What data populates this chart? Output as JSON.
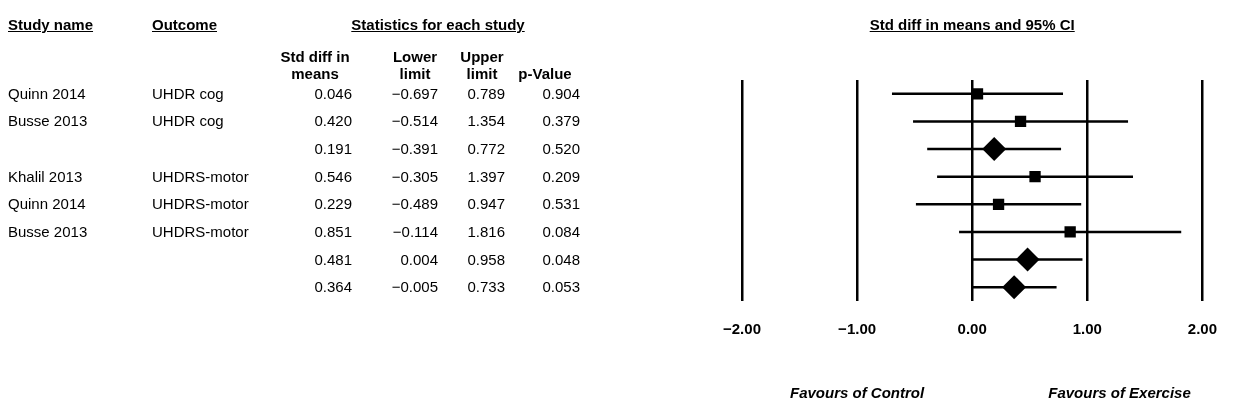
{
  "chart_data": [
    {
      "type": "other",
      "annotations": [
        "Study name",
        "Outcome",
        "Statistics for each study",
        "Std diff in means",
        "Lower limit",
        "Upper limit",
        "p-Value",
        "Quinn 2014",
        "UHDR cog",
        "0.046",
        "−0.697",
        "0.789",
        "0.904",
        "Busse 2013",
        "UHDR cog",
        "0.420",
        "−0.514",
        "1.354",
        "0.379",
        "0.191",
        "−0.391",
        "0.772",
        "0.520",
        "Khalil 2013",
        "UHDRS-motor",
        "0.546",
        "−0.305",
        "1.397",
        "0.209",
        "Quinn 2014",
        "UHDRS-motor",
        "0.229",
        "−0.489",
        "0.947",
        "0.531",
        "Busse 2013",
        "UHDRS-motor",
        "0.851",
        "−0.114",
        "1.816",
        "0.084",
        "0.481",
        "0.004",
        "0.958",
        "0.048",
        "0.364",
        "−0.005",
        "0.733",
        "0.053"
      ]
    },
    {
      "type": "scatter",
      "orientation": "horizontal",
      "title": "Std diff in means and 95% CI",
      "categories": [
        null,
        null,
        null,
        null,
        null,
        null,
        null,
        null
      ],
      "series": [
        {
          "color": "#000000",
          "marker": "square",
          "values": [
            0.046,
            0.42,
            null,
            0.546,
            0.229,
            0.851,
            null,
            null
          ],
          "errors": [
            [
              -0.697,
              0.789
            ],
            [
              -0.514,
              1.354
            ],
            null,
            [
              -0.305,
              1.397
            ],
            [
              -0.489,
              0.947
            ],
            [
              -0.114,
              1.816
            ],
            null,
            null
          ]
        },
        {
          "color": "#000000",
          "marker": "diamond",
          "values": [
            null,
            null,
            0.191,
            null,
            null,
            null,
            0.481,
            0.364
          ],
          "errors": [
            null,
            null,
            [
              -0.391,
              0.772
            ],
            null,
            null,
            null,
            [
              0.004,
              0.958
            ],
            [
              -0.005,
              0.733
            ]
          ]
        }
      ],
      "xlim": [
        -2,
        2
      ],
      "xticks": [
        {
          "value": -2,
          "label": "−2.00"
        },
        {
          "value": -1,
          "label": "−1.00"
        },
        {
          "value": 0,
          "label": "0.00"
        },
        {
          "value": 1,
          "label": "1.00"
        },
        {
          "value": 2,
          "label": "2.00"
        }
      ],
      "grid": "x",
      "legend": false,
      "annotations": [
        "Favours of Control",
        "Favours of Exercise"
      ]
    }
  ]
}
